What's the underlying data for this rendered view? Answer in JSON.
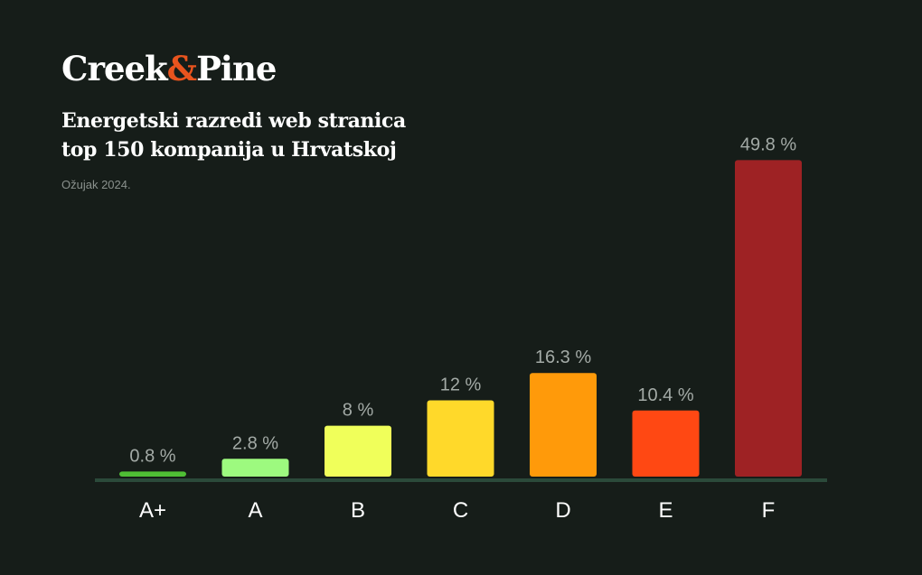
{
  "brand": {
    "name_part1": "Creek",
    "name_amp": "&",
    "name_part2": "Pine",
    "accent_color": "#e8541e"
  },
  "header": {
    "title_line1": "Energetski razredi web stranica",
    "title_line2": "top 150 kompanija u Hrvatskoj",
    "subtitle": "Ožujak 2024."
  },
  "chart_data": {
    "type": "bar",
    "title": "Energetski razredi web stranica top 150 kompanija u Hrvatskoj",
    "subtitle": "Ožujak 2024.",
    "xlabel": "",
    "ylabel": "",
    "categories": [
      "A+",
      "A",
      "B",
      "C",
      "D",
      "E",
      "F"
    ],
    "values": [
      0.8,
      2.8,
      8,
      12,
      16.3,
      10.4,
      49.8
    ],
    "value_labels": [
      "0.8 %",
      "2.8 %",
      "8 %",
      "12 %",
      "16.3 %",
      "10.4 %",
      "49.8 %"
    ],
    "colors": [
      "#4fbf35",
      "#9dfa7f",
      "#f0ff5a",
      "#ffd92a",
      "#ff9a0a",
      "#ff4813",
      "#9e2224"
    ],
    "ylim": [
      0,
      50
    ],
    "grid": false,
    "legend": "none",
    "baseline_color": "#2b4a3a"
  }
}
